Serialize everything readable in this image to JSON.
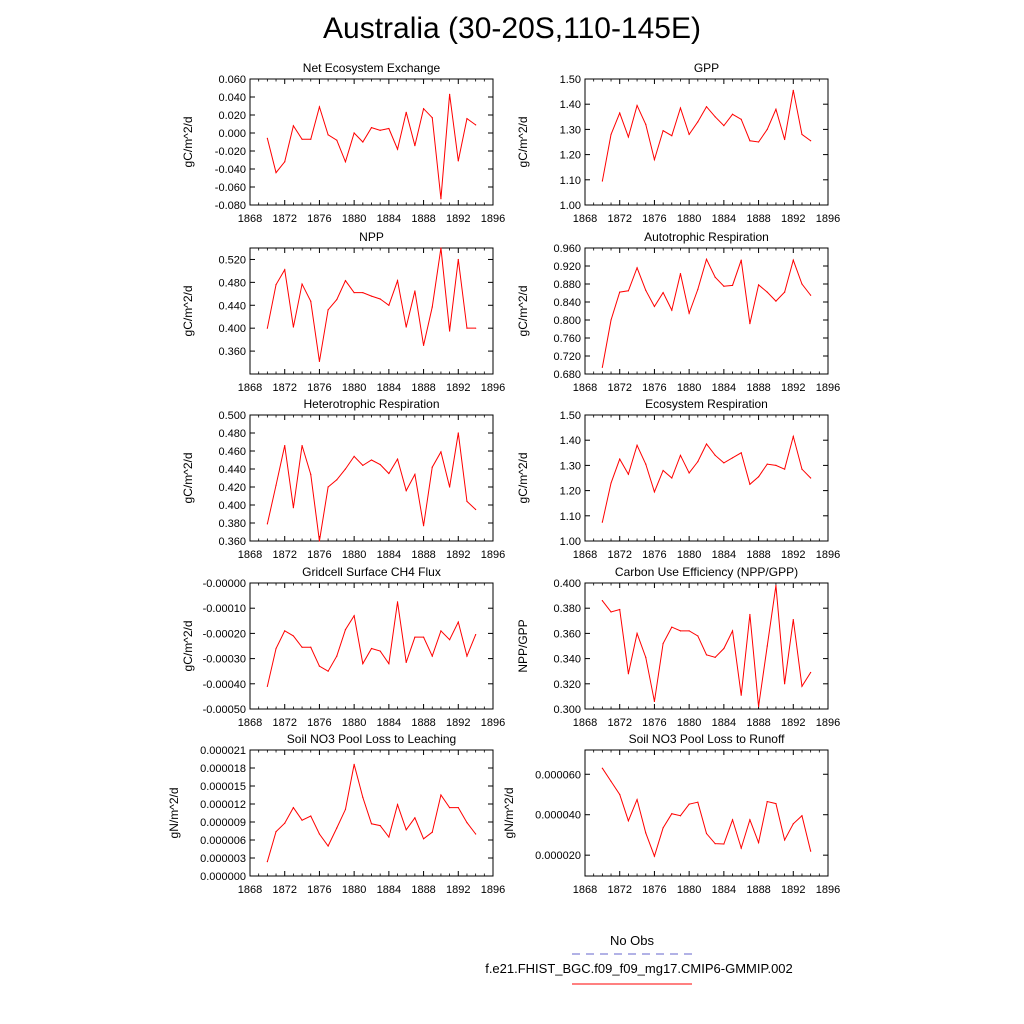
{
  "figure": {
    "title": "Australia (30-20S,110-145E)",
    "line_color": "#ff0000",
    "obs_color": "#6666cc",
    "legend": [
      {
        "label": "No Obs",
        "style": "dashed",
        "color": "#6666cc"
      },
      {
        "label": "f.e21.FHIST_BGC.f09_f09_mg17.CMIP6-GMMIP.002",
        "style": "solid",
        "color": "#ff0000"
      }
    ]
  },
  "chart_data": [
    {
      "type": "line",
      "title": "Net Ecosystem Exchange",
      "xlabel": "",
      "ylabel": "gC/m^2/d",
      "xlim": [
        1868,
        1896
      ],
      "ylim": [
        -0.08,
        0.06
      ],
      "xticks": [
        1868,
        1872,
        1876,
        1880,
        1884,
        1888,
        1892,
        1896
      ],
      "xticklabels": [
        "1868",
        "1872",
        "1876",
        "1880",
        "1884",
        "1888",
        "1892",
        "1896"
      ],
      "yticks": [
        -0.08,
        -0.06,
        -0.04,
        -0.02,
        0,
        0.02,
        0.04,
        0.06
      ],
      "yticklabels": [
        "-0.080",
        "-0.060",
        "-0.040",
        "-0.020",
        "0.000",
        "0.020",
        "0.040",
        "0.060"
      ],
      "x": [
        1870,
        1871,
        1872,
        1873,
        1874,
        1875,
        1876,
        1877,
        1878,
        1879,
        1880,
        1881,
        1882,
        1883,
        1884,
        1885,
        1886,
        1887,
        1888,
        1889,
        1890,
        1891,
        1892,
        1893,
        1894
      ],
      "series": [
        {
          "values": [
            -0.006,
            -0.044,
            -0.032,
            0.008,
            -0.007,
            -0.007,
            0.029,
            -0.002,
            -0.008,
            -0.032,
            0.0,
            -0.01,
            0.006,
            0.003,
            0.005,
            -0.018,
            0.023,
            -0.014,
            0.027,
            0.017,
            -0.073,
            0.043,
            -0.031,
            0.016,
            0.009
          ]
        }
      ]
    },
    {
      "type": "line",
      "title": "GPP",
      "xlabel": "",
      "ylabel": "gC/m^2/d",
      "xlim": [
        1868,
        1896
      ],
      "ylim": [
        1.0,
        1.5
      ],
      "xticks": [
        1868,
        1872,
        1876,
        1880,
        1884,
        1888,
        1892,
        1896
      ],
      "xticklabels": [
        "1868",
        "1872",
        "1876",
        "1880",
        "1884",
        "1888",
        "1892",
        "1896"
      ],
      "yticks": [
        1.0,
        1.1,
        1.2,
        1.3,
        1.4,
        1.5
      ],
      "yticklabels": [
        "1.00",
        "1.10",
        "1.20",
        "1.30",
        "1.40",
        "1.50"
      ],
      "x": [
        1870,
        1871,
        1872,
        1873,
        1874,
        1875,
        1876,
        1877,
        1878,
        1879,
        1880,
        1881,
        1882,
        1883,
        1884,
        1885,
        1886,
        1887,
        1888,
        1889,
        1890,
        1891,
        1892,
        1893,
        1894
      ],
      "series": [
        {
          "values": [
            1.095,
            1.28,
            1.365,
            1.27,
            1.395,
            1.32,
            1.18,
            1.295,
            1.275,
            1.385,
            1.28,
            1.33,
            1.39,
            1.35,
            1.315,
            1.36,
            1.34,
            1.255,
            1.25,
            1.3,
            1.38,
            1.26,
            1.455,
            1.28,
            1.255
          ]
        }
      ]
    },
    {
      "type": "line",
      "title": "NPP",
      "xlabel": "",
      "ylabel": "gC/m^2/d",
      "xlim": [
        1868,
        1896
      ],
      "ylim": [
        0.32,
        0.54
      ],
      "xticks": [
        1868,
        1872,
        1876,
        1880,
        1884,
        1888,
        1892,
        1896
      ],
      "xticklabels": [
        "1868",
        "1872",
        "1876",
        "1880",
        "1884",
        "1888",
        "1892",
        "1896"
      ],
      "yticks": [
        0.36,
        0.4,
        0.44,
        0.48,
        0.52
      ],
      "yticklabels": [
        "0.360",
        "0.400",
        "0.440",
        "0.480",
        "0.520"
      ],
      "x": [
        1870,
        1871,
        1872,
        1873,
        1874,
        1875,
        1876,
        1877,
        1878,
        1879,
        1880,
        1881,
        1882,
        1883,
        1884,
        1885,
        1886,
        1887,
        1888,
        1889,
        1890,
        1891,
        1892,
        1893,
        1894
      ],
      "series": [
        {
          "values": [
            0.4,
            0.476,
            0.502,
            0.402,
            0.477,
            0.447,
            0.342,
            0.432,
            0.45,
            0.483,
            0.462,
            0.462,
            0.456,
            0.451,
            0.44,
            0.483,
            0.402,
            0.465,
            0.37,
            0.437,
            0.54,
            0.395,
            0.52,
            0.4,
            0.4
          ]
        }
      ]
    },
    {
      "type": "line",
      "title": "Autotrophic Respiration",
      "xlabel": "",
      "ylabel": "gC/m^2/d",
      "xlim": [
        1868,
        1896
      ],
      "ylim": [
        0.68,
        0.96
      ],
      "xticks": [
        1868,
        1872,
        1876,
        1880,
        1884,
        1888,
        1892,
        1896
      ],
      "xticklabels": [
        "1868",
        "1872",
        "1876",
        "1880",
        "1884",
        "1888",
        "1892",
        "1896"
      ],
      "yticks": [
        0.68,
        0.72,
        0.76,
        0.8,
        0.84,
        0.88,
        0.92,
        0.96
      ],
      "yticklabels": [
        "0.680",
        "0.720",
        "0.760",
        "0.800",
        "0.840",
        "0.880",
        "0.920",
        "0.960"
      ],
      "x": [
        1870,
        1871,
        1872,
        1873,
        1874,
        1875,
        1876,
        1877,
        1878,
        1879,
        1880,
        1881,
        1882,
        1883,
        1884,
        1885,
        1886,
        1887,
        1888,
        1889,
        1890,
        1891,
        1892,
        1893,
        1894
      ],
      "series": [
        {
          "values": [
            0.695,
            0.8,
            0.862,
            0.865,
            0.916,
            0.866,
            0.83,
            0.861,
            0.822,
            0.903,
            0.815,
            0.868,
            0.935,
            0.895,
            0.875,
            0.877,
            0.933,
            0.792,
            0.878,
            0.862,
            0.842,
            0.862,
            0.933,
            0.88,
            0.855
          ]
        }
      ]
    },
    {
      "type": "line",
      "title": "Heterotrophic Respiration",
      "xlabel": "",
      "ylabel": "gC/m^2/d",
      "xlim": [
        1868,
        1896
      ],
      "ylim": [
        0.36,
        0.5
      ],
      "xticks": [
        1868,
        1872,
        1876,
        1880,
        1884,
        1888,
        1892,
        1896
      ],
      "xticklabels": [
        "1868",
        "1872",
        "1876",
        "1880",
        "1884",
        "1888",
        "1892",
        "1896"
      ],
      "yticks": [
        0.36,
        0.38,
        0.4,
        0.42,
        0.44,
        0.46,
        0.48,
        0.5
      ],
      "yticklabels": [
        "0.360",
        "0.380",
        "0.400",
        "0.420",
        "0.440",
        "0.460",
        "0.480",
        "0.500"
      ],
      "x": [
        1870,
        1871,
        1872,
        1873,
        1874,
        1875,
        1876,
        1877,
        1878,
        1879,
        1880,
        1881,
        1882,
        1883,
        1884,
        1885,
        1886,
        1887,
        1888,
        1889,
        1890,
        1891,
        1892,
        1893,
        1894
      ],
      "series": [
        {
          "values": [
            0.379,
            0.422,
            0.466,
            0.397,
            0.466,
            0.434,
            0.36,
            0.42,
            0.428,
            0.44,
            0.454,
            0.444,
            0.45,
            0.445,
            0.435,
            0.451,
            0.416,
            0.434,
            0.377,
            0.442,
            0.459,
            0.42,
            0.48,
            0.404,
            0.395
          ]
        }
      ]
    },
    {
      "type": "line",
      "title": "Ecosystem Respiration",
      "xlabel": "",
      "ylabel": "gC/m^2/d",
      "xlim": [
        1868,
        1896
      ],
      "ylim": [
        1.0,
        1.5
      ],
      "xticks": [
        1868,
        1872,
        1876,
        1880,
        1884,
        1888,
        1892,
        1896
      ],
      "xticklabels": [
        "1868",
        "1872",
        "1876",
        "1880",
        "1884",
        "1888",
        "1892",
        "1896"
      ],
      "yticks": [
        1.0,
        1.1,
        1.2,
        1.3,
        1.4,
        1.5
      ],
      "yticklabels": [
        "1.00",
        "1.10",
        "1.20",
        "1.30",
        "1.40",
        "1.50"
      ],
      "x": [
        1870,
        1871,
        1872,
        1873,
        1874,
        1875,
        1876,
        1877,
        1878,
        1879,
        1880,
        1881,
        1882,
        1883,
        1884,
        1885,
        1886,
        1887,
        1888,
        1889,
        1890,
        1891,
        1892,
        1893,
        1894
      ],
      "series": [
        {
          "values": [
            1.075,
            1.23,
            1.325,
            1.265,
            1.38,
            1.305,
            1.195,
            1.28,
            1.25,
            1.34,
            1.27,
            1.315,
            1.385,
            1.34,
            1.31,
            1.33,
            1.35,
            1.225,
            1.255,
            1.305,
            1.3,
            1.285,
            1.415,
            1.285,
            1.25
          ]
        }
      ]
    },
    {
      "type": "line",
      "title": "Gridcell Surface CH4 Flux",
      "xlabel": "",
      "ylabel": "gC/m^2/d",
      "xlim": [
        1868,
        1896
      ],
      "ylim": [
        -0.0005,
        0.0
      ],
      "xticks": [
        1868,
        1872,
        1876,
        1880,
        1884,
        1888,
        1892,
        1896
      ],
      "xticklabels": [
        "1868",
        "1872",
        "1876",
        "1880",
        "1884",
        "1888",
        "1892",
        "1896"
      ],
      "yticks": [
        -0.0005,
        -0.0004,
        -0.0003,
        -0.0002,
        -0.0001,
        0.0
      ],
      "yticklabels": [
        "-0.00050",
        "-0.00040",
        "-0.00030",
        "-0.00020",
        "-0.00010",
        "-0.00000"
      ],
      "x": [
        1870,
        1871,
        1872,
        1873,
        1874,
        1875,
        1876,
        1877,
        1878,
        1879,
        1880,
        1881,
        1882,
        1883,
        1884,
        1885,
        1886,
        1887,
        1888,
        1889,
        1890,
        1891,
        1892,
        1893,
        1894
      ],
      "series": [
        {
          "values": [
            -0.00041,
            -0.00026,
            -0.00019,
            -0.00021,
            -0.000255,
            -0.000255,
            -0.00033,
            -0.00035,
            -0.00029,
            -0.000185,
            -0.00013,
            -0.00032,
            -0.00026,
            -0.00027,
            -0.00032,
            -7.5e-05,
            -0.000315,
            -0.000215,
            -0.000215,
            -0.00029,
            -0.00019,
            -0.000225,
            -0.000155,
            -0.00029,
            -0.000205
          ]
        }
      ]
    },
    {
      "type": "line",
      "title": "Carbon Use Efficiency (NPP/GPP)",
      "xlabel": "",
      "ylabel": "NPP/GPP",
      "xlim": [
        1868,
        1896
      ],
      "ylim": [
        0.3,
        0.4
      ],
      "xticks": [
        1868,
        1872,
        1876,
        1880,
        1884,
        1888,
        1892,
        1896
      ],
      "xticklabels": [
        "1868",
        "1872",
        "1876",
        "1880",
        "1884",
        "1888",
        "1892",
        "1896"
      ],
      "yticks": [
        0.3,
        0.32,
        0.34,
        0.36,
        0.38,
        0.4
      ],
      "yticklabels": [
        "0.300",
        "0.320",
        "0.340",
        "0.360",
        "0.380",
        "0.400"
      ],
      "x": [
        1870,
        1871,
        1872,
        1873,
        1874,
        1875,
        1876,
        1877,
        1878,
        1879,
        1880,
        1881,
        1882,
        1883,
        1884,
        1885,
        1886,
        1887,
        1888,
        1889,
        1890,
        1891,
        1892,
        1893,
        1894
      ],
      "series": [
        {
          "values": [
            0.386,
            0.377,
            0.379,
            0.328,
            0.36,
            0.341,
            0.306,
            0.352,
            0.365,
            0.362,
            0.362,
            0.358,
            0.343,
            0.341,
            0.348,
            0.362,
            0.311,
            0.375,
            0.302,
            0.35,
            0.398,
            0.32,
            0.371,
            0.318,
            0.329
          ]
        }
      ]
    },
    {
      "type": "line",
      "title": "Soil NO3 Pool Loss to Leaching",
      "xlabel": "",
      "ylabel": "gN/m^2/d",
      "xlim": [
        1868,
        1896
      ],
      "ylim": [
        0.0,
        2.1e-05
      ],
      "xticks": [
        1868,
        1872,
        1876,
        1880,
        1884,
        1888,
        1892,
        1896
      ],
      "xticklabels": [
        "1868",
        "1872",
        "1876",
        "1880",
        "1884",
        "1888",
        "1892",
        "1896"
      ],
      "yticks": [
        0.0,
        3e-06,
        6e-06,
        9e-06,
        1.2e-05,
        1.5e-05,
        1.8e-05,
        2.1e-05
      ],
      "yticklabels": [
        "0.000000",
        "0.000003",
        "0.000006",
        "0.000009",
        "0.000012",
        "0.000015",
        "0.000018",
        "0.000021"
      ],
      "x": [
        1870,
        1871,
        1872,
        1873,
        1874,
        1875,
        1876,
        1877,
        1878,
        1879,
        1880,
        1881,
        1882,
        1883,
        1884,
        1885,
        1886,
        1887,
        1888,
        1889,
        1890,
        1891,
        1892,
        1893,
        1894
      ],
      "series": [
        {
          "values": [
            2.4e-06,
            7.4e-06,
            8.8e-06,
            1.14e-05,
            9.3e-06,
            1e-05,
            7e-06,
            5e-06,
            8e-06,
            1.11e-05,
            1.86e-05,
            1.31e-05,
            8.7e-06,
            8.4e-06,
            6.5e-06,
            1.19e-05,
            7.7e-06,
            9.7e-06,
            6.2e-06,
            7.3e-06,
            1.35e-05,
            1.14e-05,
            1.14e-05,
            8.9e-06,
            7e-06
          ]
        }
      ]
    },
    {
      "type": "line",
      "title": "Soil NO3 Pool Loss to Runoff",
      "xlabel": "",
      "ylabel": "gN/m^2/d",
      "xlim": [
        1868,
        1896
      ],
      "ylim": [
        9.7e-06,
        7.2e-05
      ],
      "xticks": [
        1868,
        1872,
        1876,
        1880,
        1884,
        1888,
        1892,
        1896
      ],
      "xticklabels": [
        "1868",
        "1872",
        "1876",
        "1880",
        "1884",
        "1888",
        "1892",
        "1896"
      ],
      "yticks": [
        2e-05,
        4e-05,
        6e-05
      ],
      "yticklabels": [
        "0.000020",
        "0.000040",
        "0.000060"
      ],
      "x": [
        1870,
        1871,
        1872,
        1873,
        1874,
        1875,
        1876,
        1877,
        1878,
        1879,
        1880,
        1881,
        1882,
        1883,
        1884,
        1885,
        1886,
        1887,
        1888,
        1889,
        1890,
        1891,
        1892,
        1893,
        1894
      ],
      "series": [
        {
          "values": [
            6.3e-05,
            5.65e-05,
            5e-05,
            3.7e-05,
            4.75e-05,
            3.1e-05,
            1.95e-05,
            3.35e-05,
            4.05e-05,
            3.95e-05,
            4.52e-05,
            4.62e-05,
            3.07e-05,
            2.57e-05,
            2.55e-05,
            3.75e-05,
            2.35e-05,
            3.75e-05,
            2.62e-05,
            4.65e-05,
            4.55e-05,
            2.75e-05,
            3.55e-05,
            3.95e-05,
            2.2e-05
          ]
        }
      ]
    }
  ]
}
